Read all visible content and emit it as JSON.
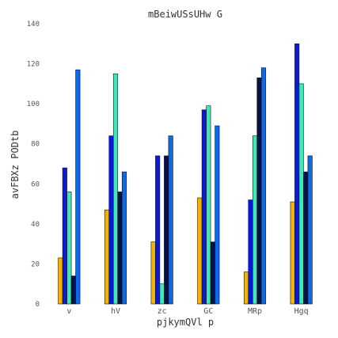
{
  "chart_data": {
    "type": "bar",
    "title": "mBeiwUSsUHw G",
    "xlabel": "pjkymQVl p",
    "ylabel": "avFBXz PODtb",
    "categories": [
      "v",
      "hV",
      "zc",
      "GC",
      "MRp",
      "Hgq"
    ],
    "ylim": [
      0,
      140
    ],
    "yticks": [
      0,
      20,
      40,
      60,
      80,
      100,
      120,
      140
    ],
    "grid": false,
    "legend": "none",
    "series": [
      {
        "color": "#f5b400",
        "values": [
          23,
          47,
          31,
          53,
          16,
          51
        ]
      },
      {
        "color": "#0a1ad8",
        "values": [
          68,
          84,
          74,
          97,
          52,
          130
        ]
      },
      {
        "color": "#40e8b8",
        "values": [
          56,
          115,
          10,
          99,
          84,
          110
        ]
      },
      {
        "color": "#06104a",
        "values": [
          14,
          56,
          74,
          31,
          113,
          66
        ]
      },
      {
        "color": "#0a6ae8",
        "values": [
          117,
          66,
          84,
          89,
          118,
          74
        ]
      }
    ]
  }
}
